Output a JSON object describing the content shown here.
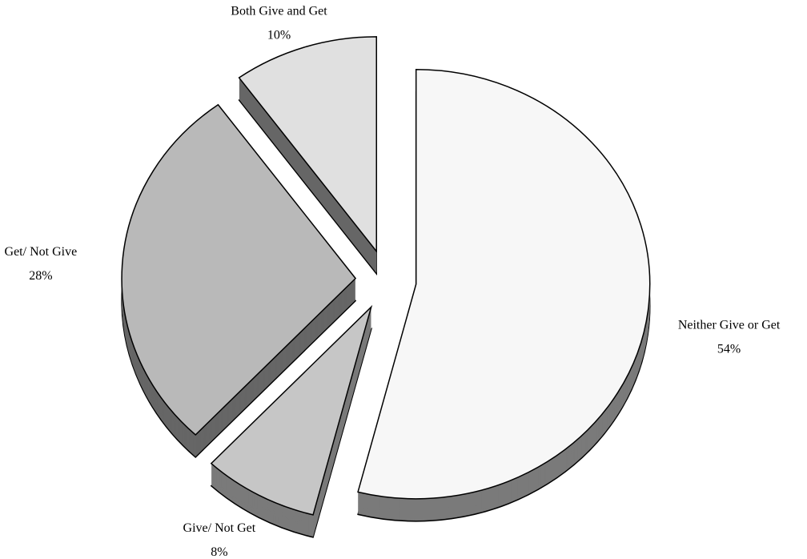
{
  "chart_data": {
    "type": "pie",
    "categories": [
      "Neither Give or Get",
      "Give/ Not Get",
      "Get/ Not Give",
      "Both Give and Get"
    ],
    "values": [
      54,
      8,
      28,
      10
    ],
    "value_labels": [
      "54%",
      "8%",
      "28%",
      "10%"
    ],
    "colors": [
      "#f7f7f7",
      "#c6c6c6",
      "#b9b9b9",
      "#e0e0e0"
    ]
  }
}
